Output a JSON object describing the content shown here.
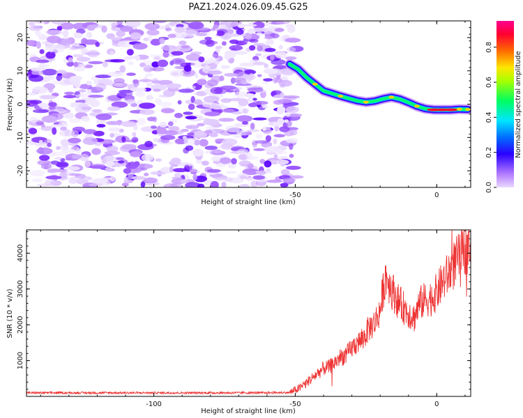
{
  "figure": {
    "title": "PAZ1.2024.026.09.45.G25"
  },
  "chart_data": [
    {
      "type": "heatmap",
      "xlabel": "Height of straight line (km)",
      "ylabel": "Frequency (Hz)",
      "xlim": [
        -145,
        12
      ],
      "ylim": [
        -25,
        25
      ],
      "xticks": [
        -100,
        -50,
        0
      ],
      "yticks": [
        -20,
        -10,
        0,
        10,
        20
      ],
      "noise_region_x": [
        -145,
        -50
      ],
      "signal_track": {
        "x": [
          -52,
          -49,
          -46,
          -43,
          -40,
          -37,
          -34,
          -31,
          -28,
          -25,
          -22,
          -19,
          -16,
          -13,
          -10,
          -7,
          -4,
          -1,
          2,
          5,
          8,
          11
        ],
        "y": [
          12,
          10.5,
          8,
          6,
          4,
          3.2,
          2.4,
          1.7,
          1,
          0.6,
          0.9,
          1.6,
          2.1,
          1.5,
          0.5,
          -0.6,
          -1.4,
          -1.7,
          -1.7,
          -1.7,
          -1.5,
          -1.6
        ]
      },
      "colorbar": {
        "label": "Normalized spectral amplitude",
        "ticks": [
          0.0,
          0.2,
          0.4,
          0.6,
          0.8
        ],
        "range": [
          0,
          0.95
        ]
      }
    },
    {
      "type": "line",
      "xlabel": "Height of straight line (km)",
      "ylabel": "SNR (10 * v/v)",
      "xlim": [
        -145,
        12
      ],
      "ylim": [
        0,
        4650
      ],
      "xticks": [
        -100,
        -50,
        0
      ],
      "yticks": [
        1000,
        2000,
        3000,
        4000
      ],
      "series": [
        {
          "color": "#ee3333",
          "x": [
            -145,
            -120,
            -100,
            -80,
            -60,
            -52,
            -48,
            -45,
            -42,
            -40,
            -38,
            -36,
            -34,
            -32,
            -30,
            -28,
            -26,
            -24,
            -22,
            -20,
            -19,
            -18,
            -16,
            -14,
            -12,
            -10,
            -8,
            -6,
            -4,
            -2,
            0,
            2,
            4,
            6,
            8,
            10,
            12
          ],
          "y": [
            100,
            100,
            100,
            100,
            100,
            110,
            250,
            450,
            650,
            780,
            820,
            950,
            1100,
            1150,
            1350,
            1500,
            1600,
            1900,
            2050,
            2400,
            2950,
            3400,
            3000,
            2700,
            2500,
            2350,
            2200,
            2600,
            2700,
            2750,
            2900,
            3200,
            3400,
            3700,
            3900,
            4100,
            4300
          ]
        }
      ]
    }
  ]
}
